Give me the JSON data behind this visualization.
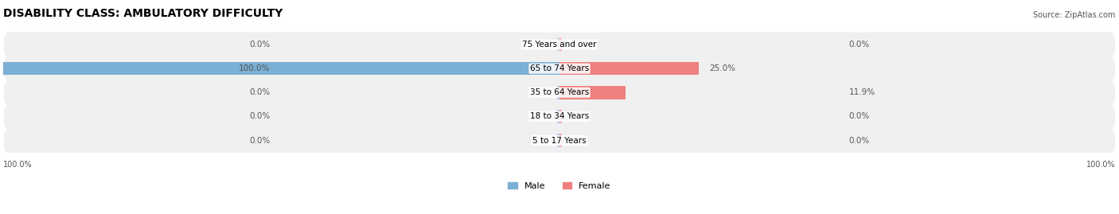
{
  "title": "DISABILITY CLASS: AMBULATORY DIFFICULTY",
  "source": "Source: ZipAtlas.com",
  "categories": [
    "5 to 17 Years",
    "18 to 34 Years",
    "35 to 64 Years",
    "65 to 74 Years",
    "75 Years and over"
  ],
  "male_values": [
    0.0,
    0.0,
    0.0,
    100.0,
    0.0
  ],
  "female_values": [
    0.0,
    0.0,
    11.9,
    25.0,
    0.0
  ],
  "male_color": "#7bafd4",
  "female_color": "#f08080",
  "male_color_light": "#aecde8",
  "female_color_light": "#f4a8a8",
  "bar_bg_color": "#e8e8e8",
  "row_bg_color_odd": "#f0f0f0",
  "row_bg_color_even": "#e0e0e0",
  "max_value": 100.0,
  "title_fontsize": 10,
  "label_fontsize": 7.5,
  "tick_fontsize": 7,
  "legend_fontsize": 8
}
